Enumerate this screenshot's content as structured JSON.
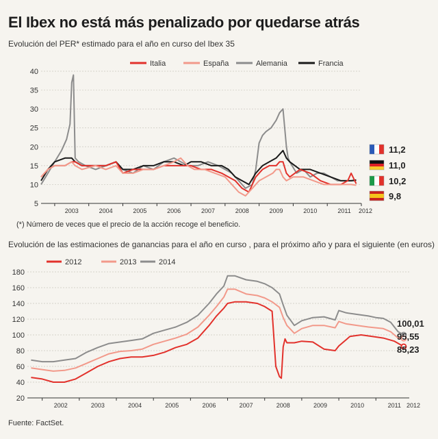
{
  "header": {
    "title": "El Ibex no está más penalizado por quedarse atrás"
  },
  "charts_text": {
    "subtitle1": "Evolución del PER* estimado para el año en curso del Ibex 35",
    "footnote": "(*) Número de veces que el precio de la acción recoge el beneficio.",
    "subtitle2": "Evolución de las estimaciones de ganancias para el año en curso , para el próximo año y para el siguiente (en euros)",
    "source": "Fuente: FactSet."
  },
  "colors": {
    "italia": "#e2312b",
    "espana": "#f2998a",
    "alemania": "#8c8c8c",
    "francia": "#1a1a1a",
    "s2012": "#e2312b",
    "s2013": "#f2998a",
    "s2014": "#8c8c8c",
    "grid": "#c9c6bf",
    "background": "#f6f4ef"
  },
  "chart_data": [
    {
      "type": "line",
      "title": "Evolución del PER* estimado para el año en curso del Ibex 35",
      "x_tick_labels": [
        "2003",
        "2004",
        "2005",
        "2006",
        "2007",
        "2008",
        "2009",
        "2010",
        "2011",
        "2012"
      ],
      "xlim": [
        2002.6,
        2012.0
      ],
      "ylim": [
        5,
        40
      ],
      "yticks": [
        5,
        10,
        15,
        20,
        25,
        30,
        35,
        40
      ],
      "grid": true,
      "legend_position": "top-right",
      "legend": [
        "Italia",
        "España",
        "Alemania",
        "Francia"
      ],
      "end_labels": [
        {
          "flag": "Francia",
          "value": "11,2"
        },
        {
          "flag": "Alemania",
          "value": "11,0"
        },
        {
          "flag": "Italia",
          "value": "10,2"
        },
        {
          "flag": "España",
          "value": "9,8"
        }
      ],
      "series": [
        {
          "name": "Alemania",
          "color_key": "alemania",
          "x": [
            2002.6,
            2002.8,
            2003.0,
            2003.2,
            2003.35,
            2003.45,
            2003.5,
            2003.55,
            2003.6,
            2003.7,
            2003.9,
            2004.2,
            2004.5,
            2004.8,
            2005.0,
            2005.3,
            2005.6,
            2005.9,
            2006.2,
            2006.5,
            2006.7,
            2006.9,
            2007.2,
            2007.5,
            2007.8,
            2008.0,
            2008.2,
            2008.4,
            2008.6,
            2008.8,
            2008.9,
            2009.0,
            2009.1,
            2009.2,
            2009.35,
            2009.5,
            2009.6,
            2009.7,
            2009.75,
            2009.8,
            2009.85,
            2009.9,
            2010.1,
            2010.3,
            2010.5,
            2010.7,
            2010.9,
            2011.1,
            2011.3,
            2011.5,
            2011.7,
            2011.85
          ],
          "y": [
            10,
            13,
            16,
            19,
            22,
            26,
            37,
            39,
            17,
            16,
            15,
            14,
            15,
            16,
            14,
            13,
            15,
            14,
            16,
            17,
            16,
            15,
            15,
            16,
            15,
            14,
            13,
            11,
            9,
            10,
            14,
            21,
            23,
            24,
            25,
            27,
            29,
            30,
            25,
            20,
            17,
            16,
            13,
            14,
            12,
            13,
            13,
            12,
            11,
            11,
            11,
            11
          ]
        },
        {
          "name": "Francia",
          "color_key": "francia",
          "x": [
            2002.6,
            2002.8,
            2003.0,
            2003.3,
            2003.5,
            2003.6,
            2003.8,
            2004.2,
            2004.5,
            2004.8,
            2005.0,
            2005.3,
            2005.6,
            2005.9,
            2006.2,
            2006.5,
            2006.8,
            2007.0,
            2007.3,
            2007.6,
            2007.9,
            2008.1,
            2008.3,
            2008.5,
            2008.7,
            2008.9,
            2009.1,
            2009.3,
            2009.5,
            2009.6,
            2009.7,
            2009.8,
            2009.9,
            2010.2,
            2010.5,
            2010.8,
            2011.1,
            2011.4,
            2011.7,
            2011.85
          ],
          "y": [
            11,
            14,
            16,
            17,
            17,
            16,
            15,
            15,
            15,
            16,
            14,
            14,
            15,
            15,
            16,
            16,
            15,
            16,
            16,
            15,
            15,
            14,
            12,
            11,
            10,
            13,
            15,
            16,
            17,
            18,
            19,
            17,
            16,
            14,
            14,
            13,
            12,
            11,
            11,
            11.2
          ]
        },
        {
          "name": "Italia",
          "color_key": "italia",
          "x": [
            2002.6,
            2002.8,
            2003.0,
            2003.3,
            2003.5,
            2003.6,
            2003.8,
            2004.2,
            2004.5,
            2004.8,
            2005.0,
            2005.3,
            2005.6,
            2005.9,
            2006.2,
            2006.5,
            2006.8,
            2007.0,
            2007.3,
            2007.6,
            2007.9,
            2008.1,
            2008.3,
            2008.5,
            2008.7,
            2008.9,
            2009.1,
            2009.3,
            2009.5,
            2009.6,
            2009.7,
            2009.8,
            2009.9,
            2010.2,
            2010.5,
            2010.8,
            2011.1,
            2011.4,
            2011.6,
            2011.7,
            2011.85
          ],
          "y": [
            12,
            14,
            15,
            15,
            16,
            16,
            15,
            15,
            15,
            16,
            13,
            14,
            14,
            14,
            15,
            15,
            15,
            15,
            14,
            14,
            13,
            12,
            11,
            9,
            8,
            12,
            14,
            15,
            15,
            16,
            16,
            13,
            12,
            14,
            13,
            11,
            10,
            10,
            11,
            13,
            10.2
          ]
        },
        {
          "name": "España",
          "color_key": "espana",
          "x": [
            2002.6,
            2002.8,
            2003.0,
            2003.3,
            2003.5,
            2003.6,
            2003.8,
            2004.2,
            2004.5,
            2004.8,
            2005.0,
            2005.3,
            2005.6,
            2005.9,
            2006.2,
            2006.5,
            2006.7,
            2006.9,
            2007.1,
            2007.4,
            2007.7,
            2008.0,
            2008.2,
            2008.4,
            2008.6,
            2008.8,
            2009.0,
            2009.2,
            2009.4,
            2009.5,
            2009.6,
            2009.7,
            2009.8,
            2010.0,
            2010.3,
            2010.6,
            2010.9,
            2011.2,
            2011.5,
            2011.7,
            2011.85
          ],
          "y": [
            12,
            14,
            15,
            15,
            16,
            15,
            14,
            15,
            14,
            15,
            13,
            13,
            14,
            14,
            15,
            16,
            17,
            15,
            14,
            14,
            13,
            12,
            10,
            8,
            7,
            9,
            11,
            12,
            13,
            14,
            14,
            12,
            11,
            12,
            12,
            11,
            10,
            10,
            10,
            10,
            9.8
          ]
        }
      ]
    },
    {
      "type": "line",
      "title": "Evolución de las estimaciones de ganancias para el año en curso , para el próximo año y para el siguiente (en euros)",
      "x_tick_labels": [
        "2002",
        "2003",
        "2004",
        "2005",
        "2006",
        "2007",
        "2008",
        "2009",
        "2010",
        "2011",
        "2012"
      ],
      "xlim": [
        2001.6,
        2011.9
      ],
      "ylim": [
        20,
        180
      ],
      "yticks": [
        20,
        40,
        60,
        80,
        100,
        120,
        140,
        160,
        180
      ],
      "grid": true,
      "legend_position": "top-left",
      "legend": [
        "2012",
        "2013",
        "2014"
      ],
      "end_labels": [
        {
          "series": "2014",
          "value": "100,01"
        },
        {
          "series": "2013",
          "value": "95,55"
        },
        {
          "series": "2012",
          "value": "85,23"
        }
      ],
      "series": [
        {
          "name": "2014",
          "color_key": "s2014",
          "x": [
            2001.7,
            2002.0,
            2002.3,
            2002.6,
            2002.9,
            2003.2,
            2003.5,
            2003.8,
            2004.1,
            2004.4,
            2004.7,
            2005.0,
            2005.3,
            2005.6,
            2005.9,
            2006.2,
            2006.5,
            2006.7,
            2006.9,
            2007.0,
            2007.2,
            2007.5,
            2007.8,
            2008.0,
            2008.2,
            2008.4,
            2008.5,
            2008.6,
            2008.8,
            2009.0,
            2009.3,
            2009.6,
            2009.9,
            2010.0,
            2010.2,
            2010.5,
            2010.8,
            2011.0,
            2011.2,
            2011.4,
            2011.6,
            2011.75
          ],
          "y": [
            68,
            66,
            66,
            68,
            70,
            78,
            84,
            89,
            91,
            93,
            95,
            102,
            106,
            110,
            116,
            125,
            140,
            152,
            162,
            175,
            175,
            170,
            168,
            165,
            160,
            152,
            138,
            125,
            112,
            118,
            122,
            123,
            119,
            131,
            128,
            126,
            124,
            122,
            121,
            116,
            104,
            100.01
          ]
        },
        {
          "name": "2013",
          "color_key": "s2013",
          "x": [
            2001.7,
            2002.0,
            2002.3,
            2002.6,
            2002.9,
            2003.2,
            2003.5,
            2003.8,
            2004.1,
            2004.4,
            2004.7,
            2005.0,
            2005.3,
            2005.6,
            2005.9,
            2006.2,
            2006.5,
            2006.7,
            2006.9,
            2007.0,
            2007.2,
            2007.5,
            2007.8,
            2008.0,
            2008.2,
            2008.4,
            2008.5,
            2008.6,
            2008.8,
            2009.0,
            2009.3,
            2009.6,
            2009.9,
            2010.0,
            2010.2,
            2010.5,
            2010.8,
            2011.0,
            2011.2,
            2011.4,
            2011.6,
            2011.75
          ],
          "y": [
            58,
            56,
            54,
            55,
            58,
            64,
            70,
            76,
            79,
            80,
            82,
            88,
            92,
            96,
            101,
            110,
            125,
            136,
            148,
            158,
            158,
            152,
            150,
            147,
            142,
            135,
            122,
            112,
            102,
            108,
            112,
            112,
            109,
            117,
            114,
            112,
            110,
            109,
            108,
            104,
            96,
            95.55
          ]
        },
        {
          "name": "2012",
          "color_key": "s2012",
          "x": [
            2001.7,
            2002.0,
            2002.3,
            2002.6,
            2002.9,
            2003.2,
            2003.5,
            2003.8,
            2004.1,
            2004.4,
            2004.7,
            2005.0,
            2005.3,
            2005.6,
            2005.9,
            2006.2,
            2006.5,
            2006.7,
            2006.9,
            2007.0,
            2007.2,
            2007.5,
            2007.8,
            2008.0,
            2008.2,
            2008.3,
            2008.4,
            2008.45,
            2008.5,
            2008.55,
            2008.6,
            2008.8,
            2009.0,
            2009.3,
            2009.6,
            2009.9,
            2010.0,
            2010.3,
            2010.6,
            2010.9,
            2011.2,
            2011.5,
            2011.75
          ],
          "y": [
            46,
            44,
            40,
            40,
            44,
            52,
            60,
            66,
            70,
            72,
            72,
            74,
            78,
            84,
            88,
            96,
            112,
            124,
            134,
            140,
            142,
            142,
            140,
            136,
            130,
            60,
            47,
            45,
            85,
            95,
            90,
            90,
            92,
            91,
            82,
            80,
            86,
            98,
            100,
            98,
            96,
            92,
            85.23
          ]
        }
      ]
    }
  ]
}
